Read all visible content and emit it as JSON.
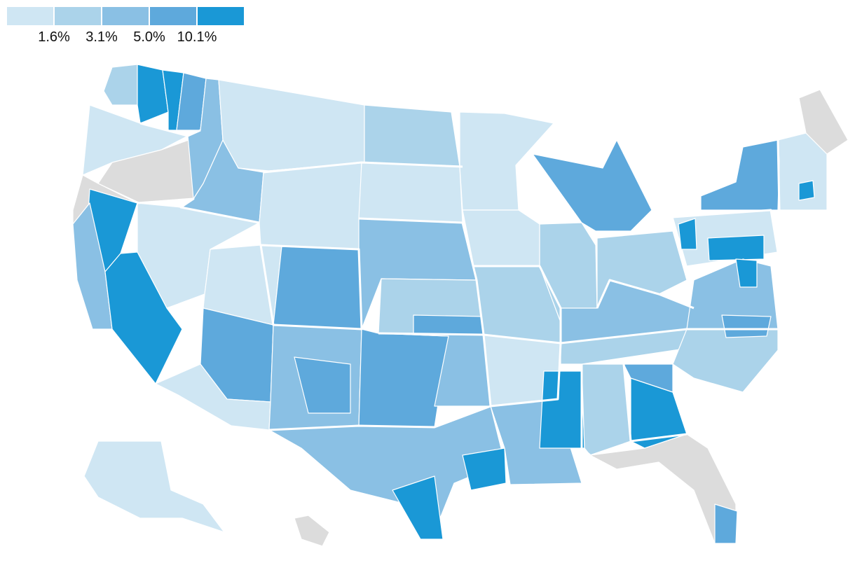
{
  "legend": {
    "colors": [
      "#cfe6f3",
      "#abd3ea",
      "#8ac0e4",
      "#5ea9dc",
      "#1a98d6"
    ],
    "labels": [
      "1.6%",
      "3.1%",
      "5.0%",
      "10.1%"
    ]
  },
  "palette": {
    "no_data": "#dcdcdc",
    "border": "#ffffff"
  },
  "regions": [
    {
      "id": "washington-west",
      "bin": 1
    },
    {
      "id": "washington-olympia",
      "bin": 4
    },
    {
      "id": "washington-yakima",
      "bin": 4
    },
    {
      "id": "washington-east",
      "bin": 3
    },
    {
      "id": "oregon-north",
      "bin": 0
    },
    {
      "id": "oregon-east",
      "bin": null
    },
    {
      "id": "idaho-north",
      "bin": 2
    },
    {
      "id": "idaho-south",
      "bin": 2
    },
    {
      "id": "montana",
      "bin": 0
    },
    {
      "id": "wyoming",
      "bin": 0
    },
    {
      "id": "north-dakota",
      "bin": 1
    },
    {
      "id": "south-dakota",
      "bin": 0
    },
    {
      "id": "minnesota",
      "bin": 0
    },
    {
      "id": "nevada-north",
      "bin": 0
    },
    {
      "id": "utah",
      "bin": 0
    },
    {
      "id": "colorado-west",
      "bin": 3
    },
    {
      "id": "colorado-east",
      "bin": 2
    },
    {
      "id": "california-north",
      "bin": null
    },
    {
      "id": "california-central-valley",
      "bin": 4
    },
    {
      "id": "california-coast",
      "bin": 2
    },
    {
      "id": "california-south",
      "bin": 4
    },
    {
      "id": "arizona-north",
      "bin": 3
    },
    {
      "id": "arizona-south",
      "bin": 0
    },
    {
      "id": "new-mexico",
      "bin": 2
    },
    {
      "id": "new-mexico-central",
      "bin": 3
    },
    {
      "id": "kansas",
      "bin": 1
    },
    {
      "id": "kansas-south",
      "bin": 3
    },
    {
      "id": "oklahoma-west",
      "bin": 3
    },
    {
      "id": "oklahoma-east",
      "bin": 2
    },
    {
      "id": "texas-west",
      "bin": 2
    },
    {
      "id": "texas-valley",
      "bin": 4
    },
    {
      "id": "texas-houston",
      "bin": 4
    },
    {
      "id": "iowa",
      "bin": 0
    },
    {
      "id": "missouri",
      "bin": 1
    },
    {
      "id": "arkansas",
      "bin": 0
    },
    {
      "id": "louisiana",
      "bin": 2
    },
    {
      "id": "mississippi-delta",
      "bin": 4
    },
    {
      "id": "alabama",
      "bin": 1
    },
    {
      "id": "georgia-south",
      "bin": 4
    },
    {
      "id": "georgia-north",
      "bin": 3
    },
    {
      "id": "florida",
      "bin": null
    },
    {
      "id": "florida-miami",
      "bin": 3
    },
    {
      "id": "tennessee",
      "bin": 1
    },
    {
      "id": "kentucky",
      "bin": 2
    },
    {
      "id": "illinois",
      "bin": 1
    },
    {
      "id": "michigan",
      "bin": 3
    },
    {
      "id": "ohio",
      "bin": 1
    },
    {
      "id": "pennsylvania",
      "bin": 0
    },
    {
      "id": "pennsylvania-southeast",
      "bin": 4
    },
    {
      "id": "new-york-upstate",
      "bin": 3
    },
    {
      "id": "new-york-west",
      "bin": 4
    },
    {
      "id": "virginia",
      "bin": 2
    },
    {
      "id": "maryland-east",
      "bin": 4
    },
    {
      "id": "north-carolina",
      "bin": 1
    },
    {
      "id": "north-carolina-west",
      "bin": 3
    },
    {
      "id": "new-england",
      "bin": 0
    },
    {
      "id": "massachusetts-east",
      "bin": 4
    },
    {
      "id": "maine",
      "bin": null
    },
    {
      "id": "alaska",
      "bin": 0
    },
    {
      "id": "hawaii",
      "bin": null
    }
  ]
}
